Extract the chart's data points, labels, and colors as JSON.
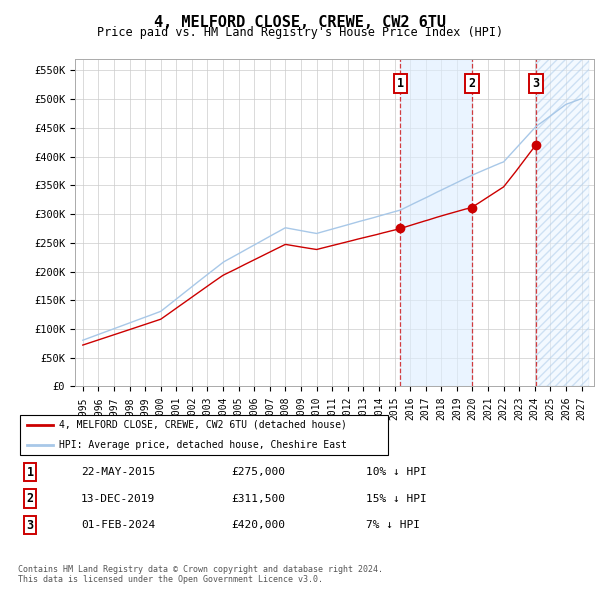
{
  "title": "4, MELFORD CLOSE, CREWE, CW2 6TU",
  "subtitle": "Price paid vs. HM Land Registry's House Price Index (HPI)",
  "ylim": [
    0,
    570000
  ],
  "yticks": [
    0,
    50000,
    100000,
    150000,
    200000,
    250000,
    300000,
    350000,
    400000,
    450000,
    500000,
    550000
  ],
  "ytick_labels": [
    "£0",
    "£50K",
    "£100K",
    "£150K",
    "£200K",
    "£250K",
    "£300K",
    "£350K",
    "£400K",
    "£450K",
    "£500K",
    "£550K"
  ],
  "xtick_years": [
    1995,
    1996,
    1997,
    1998,
    1999,
    2000,
    2001,
    2002,
    2003,
    2004,
    2005,
    2006,
    2007,
    2008,
    2009,
    2010,
    2011,
    2012,
    2013,
    2014,
    2015,
    2016,
    2017,
    2018,
    2019,
    2020,
    2021,
    2022,
    2023,
    2024,
    2025,
    2026,
    2027
  ],
  "hpi_color": "#a8c8e8",
  "price_color": "#cc0000",
  "transactions": [
    {
      "date": 2015.38,
      "price": 275000,
      "label": "1"
    },
    {
      "date": 2019.95,
      "price": 311500,
      "label": "2"
    },
    {
      "date": 2024.08,
      "price": 420000,
      "label": "3"
    }
  ],
  "vline_dates": [
    2015.38,
    2019.95,
    2024.08
  ],
  "shaded_region_start": 2015.38,
  "shaded_region_end": 2019.95,
  "hatched_region_start": 2024.08,
  "hatched_region_end": 2027.5,
  "legend_property_label": "4, MELFORD CLOSE, CREWE, CW2 6TU (detached house)",
  "legend_hpi_label": "HPI: Average price, detached house, Cheshire East",
  "table_rows": [
    {
      "num": "1",
      "date": "22-MAY-2015",
      "price": "£275,000",
      "hpi": "10% ↓ HPI"
    },
    {
      "num": "2",
      "date": "13-DEC-2019",
      "price": "£311,500",
      "hpi": "15% ↓ HPI"
    },
    {
      "num": "3",
      "date": "01-FEB-2024",
      "price": "£420,000",
      "hpi": "7% ↓ HPI"
    }
  ],
  "footnote": "Contains HM Land Registry data © Crown copyright and database right 2024.\nThis data is licensed under the Open Government Licence v3.0.",
  "background_color": "#ffffff",
  "grid_color": "#cccccc"
}
